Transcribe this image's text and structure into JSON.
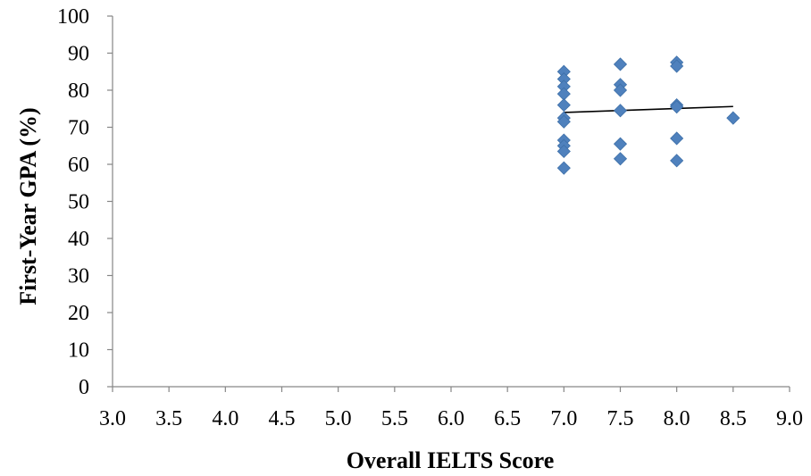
{
  "chart_data": {
    "type": "scatter",
    "title": "",
    "xlabel": "Overall IELTS Score",
    "ylabel": "First-Year GPA (%)",
    "xlim": [
      3.0,
      9.0
    ],
    "ylim": [
      0,
      100
    ],
    "x_ticks": [
      "3.0",
      "3.5",
      "4.0",
      "4.5",
      "5.0",
      "5.5",
      "6.0",
      "6.5",
      "7.0",
      "7.5",
      "8.0",
      "8.5",
      "9.0"
    ],
    "y_ticks": [
      "0",
      "10",
      "20",
      "30",
      "40",
      "50",
      "60",
      "70",
      "80",
      "90",
      "100"
    ],
    "grid": false,
    "legend": "none",
    "series": [
      {
        "marker": "diamond",
        "color": "#4f81bd",
        "points": [
          {
            "x": 7.0,
            "y": 85
          },
          {
            "x": 7.0,
            "y": 83
          },
          {
            "x": 7.0,
            "y": 81
          },
          {
            "x": 7.0,
            "y": 79
          },
          {
            "x": 7.0,
            "y": 76
          },
          {
            "x": 7.0,
            "y": 72.5
          },
          {
            "x": 7.0,
            "y": 71.5
          },
          {
            "x": 7.0,
            "y": 66.5
          },
          {
            "x": 7.0,
            "y": 65
          },
          {
            "x": 7.0,
            "y": 63.5
          },
          {
            "x": 7.0,
            "y": 59
          },
          {
            "x": 7.5,
            "y": 87
          },
          {
            "x": 7.5,
            "y": 81.5
          },
          {
            "x": 7.5,
            "y": 80
          },
          {
            "x": 7.5,
            "y": 74.5
          },
          {
            "x": 7.5,
            "y": 65.5
          },
          {
            "x": 7.5,
            "y": 61.5
          },
          {
            "x": 8.0,
            "y": 87.5
          },
          {
            "x": 8.0,
            "y": 86.5
          },
          {
            "x": 8.0,
            "y": 76
          },
          {
            "x": 8.0,
            "y": 75.5
          },
          {
            "x": 8.0,
            "y": 67
          },
          {
            "x": 8.0,
            "y": 61
          },
          {
            "x": 8.5,
            "y": 72.5
          }
        ]
      }
    ],
    "trendline": {
      "type": "linear",
      "color": "#000000",
      "x": [
        7.0,
        8.5
      ],
      "y": [
        74,
        75.6
      ]
    }
  }
}
